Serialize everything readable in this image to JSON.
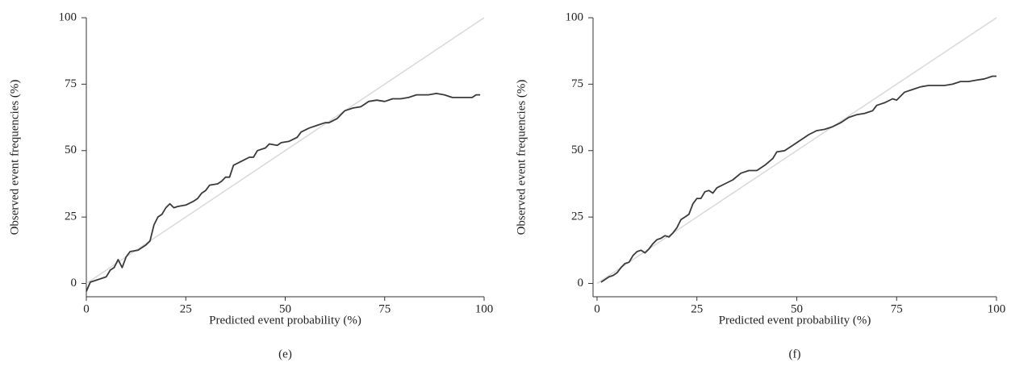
{
  "chart_data": [
    {
      "type": "line",
      "caption": "(e)",
      "x_label": "Predicted event probability (%)",
      "y_label": "Observed event frequencies (%)",
      "xlim": [
        0,
        100
      ],
      "ylim": [
        -5,
        100
      ],
      "xticks": [
        0,
        25,
        50,
        75,
        100
      ],
      "yticks": [
        0,
        25,
        50,
        75,
        100
      ],
      "reference_line": {
        "x": [
          0,
          100
        ],
        "values": [
          0,
          100
        ],
        "color": "#d9d9d9"
      },
      "series": [
        {
          "color": "#3a3a3a",
          "x": [
            0,
            1,
            3,
            5,
            6,
            7,
            8,
            9,
            10,
            11,
            13,
            15,
            16,
            17,
            18,
            19,
            20,
            21,
            22,
            23,
            25,
            27,
            28,
            29,
            30,
            31,
            33,
            34,
            35,
            36,
            37,
            39,
            41,
            42,
            43,
            45,
            46,
            48,
            49,
            51,
            53,
            54,
            56,
            58,
            60,
            61,
            63,
            65,
            67,
            69,
            71,
            73,
            75,
            77,
            79,
            81,
            83,
            86,
            88,
            90,
            92,
            95,
            97,
            98,
            99
          ],
          "values": [
            -3,
            0.5,
            1.5,
            2.5,
            5,
            6,
            9,
            6,
            10,
            12,
            12.5,
            14.5,
            16,
            22,
            25,
            26,
            28.5,
            30,
            28.5,
            29,
            29.5,
            31,
            32,
            34,
            35,
            37,
            37.5,
            38.5,
            40,
            40,
            44.5,
            46,
            47.5,
            47.5,
            50,
            51,
            52.5,
            52,
            53,
            53.5,
            55,
            57,
            58.5,
            59.5,
            60.5,
            60.5,
            62,
            65,
            66,
            66.5,
            68.5,
            69,
            68.5,
            69.5,
            69.5,
            70,
            71,
            71,
            71.5,
            71,
            70,
            70,
            70,
            71,
            71
          ]
        }
      ]
    },
    {
      "type": "line",
      "caption": "(f)",
      "x_label": "Predicted event probability (%)",
      "y_label": "Observed event frequencies (%)",
      "xlim": [
        -1,
        100
      ],
      "ylim": [
        -5,
        100
      ],
      "xticks": [
        0,
        25,
        50,
        75,
        100
      ],
      "yticks": [
        0,
        25,
        50,
        75,
        100
      ],
      "reference_line": {
        "x": [
          0,
          100
        ],
        "values": [
          0,
          100
        ],
        "color": "#d9d9d9"
      },
      "series": [
        {
          "color": "#3a3a3a",
          "x": [
            1,
            2,
            3,
            4,
            5,
            6,
            7,
            8,
            9,
            10,
            11,
            12,
            13,
            14,
            15,
            16,
            17,
            18,
            19,
            20,
            21,
            22,
            23,
            24,
            25,
            26,
            27,
            28,
            29,
            30,
            32,
            34,
            36,
            38,
            40,
            42,
            44,
            45,
            47,
            49,
            51,
            53,
            55,
            57,
            59,
            61,
            63,
            65,
            67,
            69,
            70,
            72,
            74,
            75,
            77,
            79,
            81,
            83,
            85,
            87,
            89,
            91,
            93,
            95,
            97,
            99,
            100
          ],
          "values": [
            0.5,
            1.5,
            2.5,
            3,
            4,
            6,
            7.5,
            8,
            10.5,
            12,
            12.5,
            11.5,
            13,
            15,
            16.5,
            17,
            18,
            17.5,
            19,
            21,
            24,
            25,
            26,
            30,
            32,
            32,
            34.5,
            35,
            34,
            36,
            37.5,
            39,
            41.5,
            42.5,
            42.5,
            44.5,
            47,
            49.5,
            50,
            52,
            54,
            56,
            57.5,
            58,
            59,
            60.5,
            62.5,
            63.5,
            64,
            65,
            67,
            68,
            69.5,
            69,
            72,
            73,
            74,
            74.5,
            74.5,
            74.5,
            75,
            76,
            76,
            76.5,
            77,
            78,
            78
          ]
        }
      ]
    }
  ]
}
